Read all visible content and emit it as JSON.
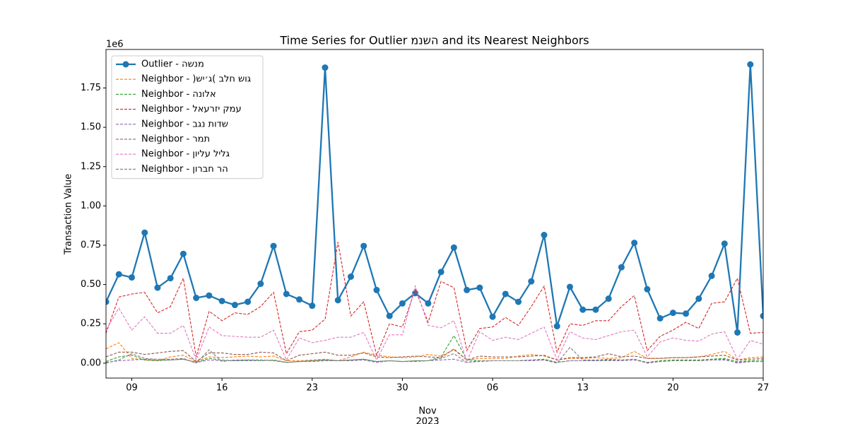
{
  "chart_data": {
    "type": "line",
    "title": "Time Series for Outlier מנשה and its Nearest Neighbors",
    "ylabel": "Transaction Value",
    "y_offset": "1e6",
    "x_offset_month": "Nov",
    "x_offset_year": "2023",
    "x": [
      "2023-10-07",
      "2023-10-08",
      "2023-10-09",
      "2023-10-10",
      "2023-10-11",
      "2023-10-12",
      "2023-10-13",
      "2023-10-14",
      "2023-10-15",
      "2023-10-16",
      "2023-10-17",
      "2023-10-18",
      "2023-10-19",
      "2023-10-20",
      "2023-10-21",
      "2023-10-22",
      "2023-10-23",
      "2023-10-24",
      "2023-10-25",
      "2023-10-26",
      "2023-10-27",
      "2023-10-28",
      "2023-10-29",
      "2023-10-30",
      "2023-10-31",
      "2023-11-01",
      "2023-11-02",
      "2023-11-03",
      "2023-11-04",
      "2023-11-05",
      "2023-11-06",
      "2023-11-07",
      "2023-11-08",
      "2023-11-09",
      "2023-11-10",
      "2023-11-11",
      "2023-11-12",
      "2023-11-13",
      "2023-11-14",
      "2023-11-15",
      "2023-11-16",
      "2023-11-17",
      "2023-11-18",
      "2023-11-19",
      "2023-11-20",
      "2023-11-21",
      "2023-11-22",
      "2023-11-23",
      "2023-11-24",
      "2023-11-25",
      "2023-11-26",
      "2023-11-27"
    ],
    "xlim": [
      "2023-10-07",
      "2023-11-27"
    ],
    "xticks": [
      {
        "value": "2023-10-09",
        "label": "09"
      },
      {
        "value": "2023-10-16",
        "label": "16"
      },
      {
        "value": "2023-10-23",
        "label": "23"
      },
      {
        "value": "2023-10-30",
        "label": "30"
      },
      {
        "value": "2023-11-06",
        "label": "06"
      },
      {
        "value": "2023-11-13",
        "label": "13"
      },
      {
        "value": "2023-11-20",
        "label": "20"
      },
      {
        "value": "2023-11-27",
        "label": "27"
      }
    ],
    "ylim": [
      -95000,
      1995000
    ],
    "yticks": [
      {
        "value": 0,
        "label": "0.00"
      },
      {
        "value": 250000,
        "label": "0.25"
      },
      {
        "value": 500000,
        "label": "0.50"
      },
      {
        "value": 750000,
        "label": "0.75"
      },
      {
        "value": 1000000,
        "label": "1.00"
      },
      {
        "value": 1250000,
        "label": "1.25"
      },
      {
        "value": 1500000,
        "label": "1.50"
      },
      {
        "value": 1750000,
        "label": "1.75"
      }
    ],
    "legend": "upper left",
    "series": [
      {
        "name": "Outlier - השנמ",
        "color": "#1f77b4",
        "style": "solid-marker",
        "values": [
          390000,
          565000,
          545000,
          830000,
          480000,
          540000,
          695000,
          415000,
          430000,
          395000,
          370000,
          390000,
          505000,
          745000,
          440000,
          405000,
          365000,
          1880000,
          400000,
          550000,
          745000,
          465000,
          300000,
          380000,
          445000,
          380000,
          580000,
          735000,
          465000,
          480000,
          295000,
          440000,
          390000,
          520000,
          815000,
          235000,
          485000,
          340000,
          340000,
          410000,
          610000,
          765000,
          470000,
          285000,
          320000,
          315000,
          410000,
          555000,
          760000,
          195000,
          1900000,
          300000
        ]
      },
      {
        "name": "Neighbor - )שי׳ג( בלח שוג",
        "color": "#ff7f0e",
        "style": "dashed",
        "values": [
          90000,
          130000,
          30000,
          20000,
          15000,
          40000,
          50000,
          10000,
          40000,
          35000,
          40000,
          45000,
          40000,
          45000,
          15000,
          15000,
          20000,
          25000,
          15000,
          40000,
          70000,
          50000,
          40000,
          35000,
          40000,
          55000,
          45000,
          85000,
          20000,
          30000,
          30000,
          30000,
          45000,
          55000,
          45000,
          20000,
          30000,
          30000,
          35000,
          30000,
          35000,
          75000,
          30000,
          30000,
          35000,
          35000,
          40000,
          55000,
          75000,
          20000,
          35000,
          40000
        ]
      },
      {
        "name": "Neighbor - הנולא",
        "color": "#2ca02c",
        "style": "dashed",
        "values": [
          10000,
          40000,
          50000,
          20000,
          15000,
          20000,
          25000,
          5000,
          30000,
          20000,
          15000,
          20000,
          20000,
          15000,
          5000,
          10000,
          15000,
          20000,
          15000,
          20000,
          25000,
          10000,
          15000,
          10000,
          15000,
          15000,
          40000,
          175000,
          20000,
          15000,
          15000,
          15000,
          15000,
          20000,
          25000,
          5000,
          15000,
          15000,
          15000,
          20000,
          20000,
          25000,
          5000,
          15000,
          20000,
          20000,
          20000,
          25000,
          30000,
          10000,
          15000,
          20000
        ]
      },
      {
        "name": "Neighbor - לאערזי קמע",
        "color": "#d62728",
        "style": "dashed",
        "values": [
          190000,
          420000,
          440000,
          450000,
          320000,
          360000,
          540000,
          40000,
          330000,
          270000,
          320000,
          310000,
          360000,
          450000,
          60000,
          200000,
          210000,
          280000,
          770000,
          300000,
          390000,
          50000,
          250000,
          230000,
          470000,
          260000,
          520000,
          480000,
          80000,
          220000,
          230000,
          290000,
          240000,
          360000,
          490000,
          70000,
          250000,
          240000,
          270000,
          270000,
          360000,
          430000,
          80000,
          170000,
          210000,
          260000,
          220000,
          380000,
          390000,
          540000,
          190000,
          195000
        ]
      },
      {
        "name": "Neighbor - בגנ תודש",
        "color": "#9467bd",
        "style": "dashed",
        "values": [
          5000,
          15000,
          20000,
          25000,
          20000,
          20000,
          25000,
          5000,
          20000,
          15000,
          15000,
          15000,
          15000,
          20000,
          5000,
          10000,
          10000,
          15000,
          15000,
          15000,
          20000,
          5000,
          15000,
          10000,
          10000,
          15000,
          20000,
          25000,
          5000,
          10000,
          15000,
          15000,
          15000,
          15000,
          20000,
          5000,
          15000,
          15000,
          15000,
          15000,
          15000,
          20000,
          5000,
          10000,
          15000,
          15000,
          15000,
          20000,
          20000,
          5000,
          10000,
          10000
        ]
      },
      {
        "name": "Neighbor - רמת",
        "color": "#8c564b",
        "style": "dashed",
        "values": [
          40000,
          70000,
          70000,
          55000,
          65000,
          75000,
          80000,
          10000,
          65000,
          65000,
          55000,
          55000,
          70000,
          65000,
          15000,
          50000,
          60000,
          70000,
          50000,
          50000,
          65000,
          40000,
          35000,
          40000,
          45000,
          40000,
          35000,
          90000,
          20000,
          45000,
          40000,
          40000,
          40000,
          45000,
          50000,
          20000,
          35000,
          35000,
          40000,
          60000,
          40000,
          45000,
          30000,
          30000,
          35000,
          35000,
          40000,
          45000,
          50000,
          20000,
          25000,
          30000
        ]
      },
      {
        "name": "Neighbor - ןוילע לילג",
        "color": "#e377c2",
        "style": "dashed",
        "values": [
          210000,
          350000,
          210000,
          295000,
          190000,
          190000,
          240000,
          20000,
          230000,
          175000,
          170000,
          165000,
          165000,
          210000,
          20000,
          160000,
          130000,
          145000,
          165000,
          165000,
          195000,
          20000,
          180000,
          180000,
          490000,
          240000,
          225000,
          270000,
          10000,
          200000,
          145000,
          165000,
          150000,
          190000,
          230000,
          20000,
          200000,
          160000,
          150000,
          175000,
          200000,
          210000,
          40000,
          135000,
          160000,
          145000,
          140000,
          185000,
          200000,
          25000,
          145000,
          120000
        ]
      },
      {
        "name": "Neighbor - ןורבח רה",
        "color": "#7f7f7f",
        "style": "dashed",
        "values": [
          0,
          20000,
          60000,
          30000,
          25000,
          25000,
          30000,
          0,
          85000,
          10000,
          20000,
          20000,
          15000,
          20000,
          5000,
          10000,
          15000,
          20000,
          15000,
          20000,
          25000,
          10000,
          15000,
          10000,
          15000,
          15000,
          30000,
          60000,
          5000,
          15000,
          15000,
          15000,
          15000,
          20000,
          20000,
          0,
          100000,
          20000,
          20000,
          25000,
          20000,
          25000,
          0,
          10000,
          15000,
          15000,
          15000,
          20000,
          25000,
          0,
          10000,
          10000
        ]
      }
    ]
  }
}
